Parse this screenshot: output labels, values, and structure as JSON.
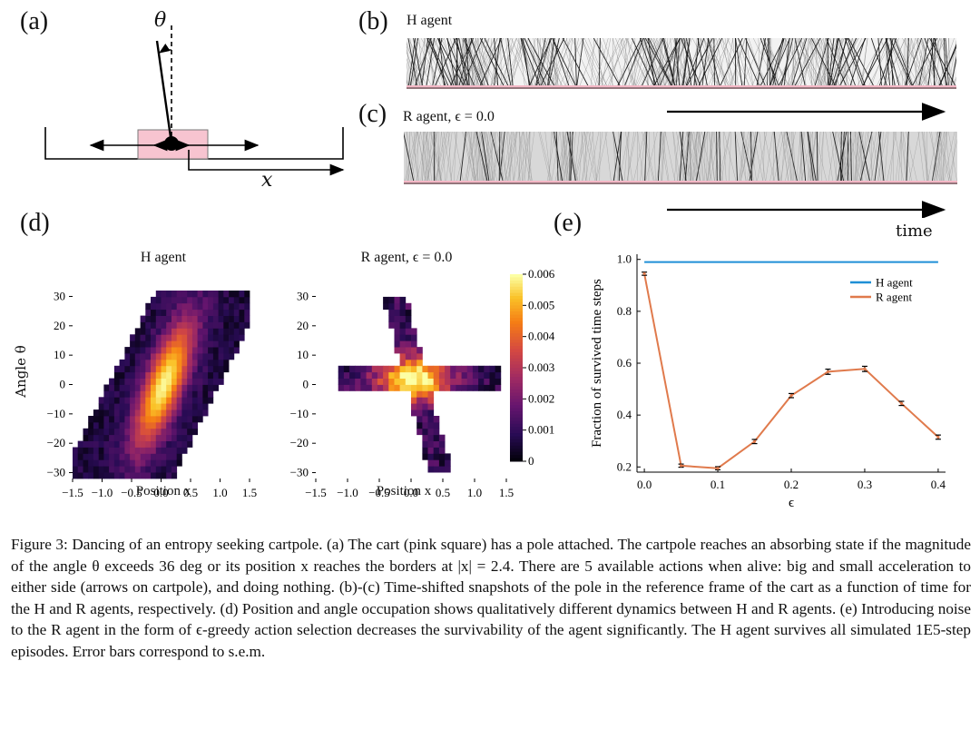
{
  "panels": {
    "a": {
      "label": "(a)",
      "theta": "θ",
      "x": "x"
    },
    "b": {
      "label": "(b)",
      "title": "H agent"
    },
    "c": {
      "label": "(c)",
      "title": "R agent, ϵ = 0.0"
    },
    "d": {
      "label": "(d)",
      "left_title": "H agent",
      "right_title": "R agent, ϵ = 0.0",
      "ylabel": "Angle θ",
      "left_xlabel": "Position x",
      "right_xlabel": "Position x"
    },
    "e": {
      "label": "(e)"
    },
    "time_label": "time"
  },
  "chart_data": [
    {
      "type": "heatmap",
      "title": "H agent",
      "xlabel": "Position x",
      "ylabel": "Angle θ",
      "xticks": [
        "−1.5",
        "−1.0",
        "−0.5",
        "0.0",
        "0.5",
        "1.0",
        "1.5"
      ],
      "yticks": [
        "30",
        "20",
        "10",
        "0",
        "−10",
        "−20",
        "−30"
      ],
      "xlim": [
        -1.5,
        1.5
      ],
      "ylim": [
        -32,
        32
      ]
    },
    {
      "type": "heatmap",
      "title": "R agent, ϵ = 0.0",
      "xlabel": "Position x",
      "xticks": [
        "−1.5",
        "−1.0",
        "−0.5",
        "0.0",
        "0.5",
        "1.0",
        "1.5"
      ],
      "yticks": [
        "30",
        "20",
        "10",
        "0",
        "−10",
        "−20",
        "−30"
      ],
      "xlim": [
        -1.5,
        1.5
      ],
      "ylim": [
        -32,
        32
      ],
      "colorbar": {
        "ticks": [
          "0.006",
          "0.005",
          "0.004",
          "0.003",
          "0.002",
          "0.001",
          "0"
        ],
        "range": [
          0,
          0.006
        ]
      }
    },
    {
      "type": "line",
      "xlabel": "ϵ",
      "ylabel": "Fraction of survived time steps",
      "x": [
        0.0,
        0.05,
        0.1,
        0.15,
        0.2,
        0.25,
        0.3,
        0.35,
        0.4
      ],
      "xticks": [
        "0.0",
        "0.1",
        "0.2",
        "0.3",
        "0.4"
      ],
      "yticks": [
        "1.0",
        "0.8",
        "0.6",
        "0.4",
        "0.2"
      ],
      "xlim": [
        -0.01,
        0.41
      ],
      "ylim": [
        0.18,
        1.02
      ],
      "legend_position": "top-right",
      "series": [
        {
          "name": "H agent",
          "color": "#1f8fd6",
          "values": [
            0.99,
            0.99,
            0.99,
            0.99,
            0.99,
            0.99,
            0.99,
            0.99,
            0.99
          ]
        },
        {
          "name": "R agent",
          "color": "#e07a4c",
          "values": [
            0.945,
            0.205,
            0.195,
            0.298,
            0.475,
            0.567,
            0.578,
            0.445,
            0.315
          ],
          "errors": [
            0.006,
            0.006,
            0.006,
            0.008,
            0.008,
            0.01,
            0.01,
            0.008,
            0.008
          ]
        }
      ]
    }
  ],
  "caption": "Figure 3: Dancing of an entropy seeking cartpole. (a) The cart (pink square) has a pole attached. The cartpole reaches an absorbing state if the magnitude of the angle θ exceeds 36 deg or its position x reaches the borders at |x| = 2.4. There are 5 available actions when alive: big and small acceleration to either side (arrows on cartpole), and doing nothing. (b)-(c) Time-shifted snapshots of the pole in the reference frame of the cart as a function of time for the H and R agents, respectively. (d) Position and angle occupation shows qualitatively different dynamics between H and R agents. (e) Introducing noise to the R agent in the form of ϵ-greedy action selection decreases the survivability of the agent significantly. The H agent survives all simulated 1E5-step episodes. Error bars correspond to s.e.m."
}
